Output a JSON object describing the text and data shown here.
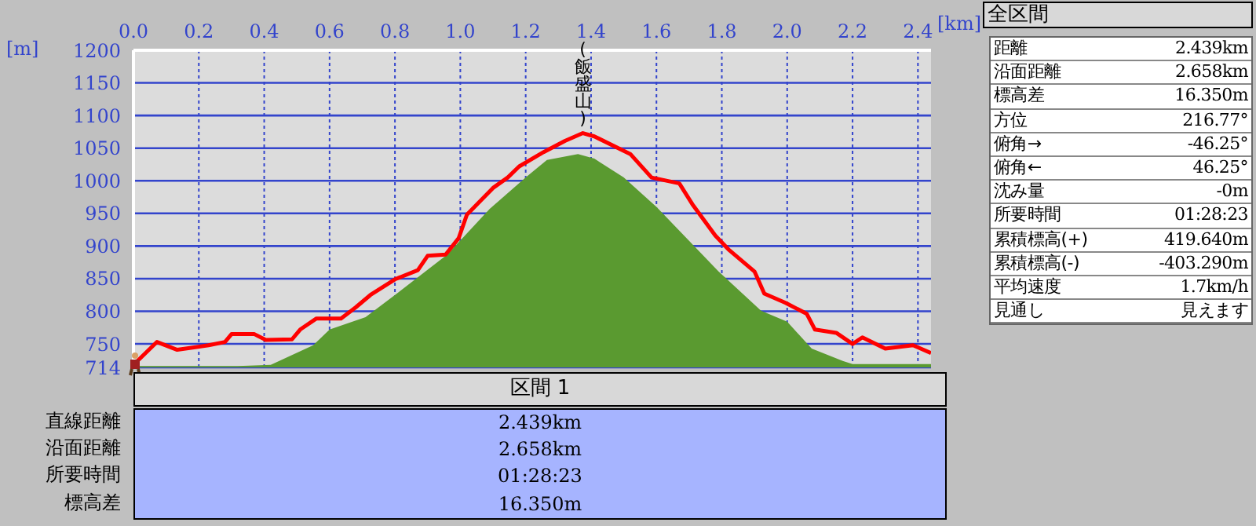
{
  "chart_data": {
    "type": "area",
    "xlabel": "[km]",
    "ylabel": "[m]",
    "xlim": [
      0,
      2.44
    ],
    "xticks": [
      {
        "value": 0,
        "label": "0.0"
      },
      0.2,
      0.4,
      0.6,
      0.8,
      {
        "value": 1,
        "label": "1.0"
      },
      1.2,
      1.4,
      1.6,
      1.8,
      {
        "value": 2,
        "label": "2.0"
      },
      2.2,
      2.4
    ],
    "ylim": [
      714,
      1200
    ],
    "yticks": [
      714,
      750,
      800,
      850,
      900,
      950,
      1000,
      1050,
      1100,
      1150,
      1200
    ],
    "grid": true,
    "marker": "none",
    "line_style": "solid",
    "series": [
      {
        "color": "#5a9a30",
        "x": [
          0,
          0.32,
          0.42,
          0.55,
          0.6,
          0.71,
          0.8,
          0.96,
          1.09,
          1.2,
          1.265,
          1.36,
          1.41,
          1.5,
          1.6,
          1.79,
          1.92,
          2.0,
          2.075,
          2.17,
          2.2,
          2.44
        ],
        "values": [
          716,
          716,
          718,
          748,
          772,
          791,
          825,
          887,
          957,
          1005,
          1032,
          1041,
          1034,
          1005,
          960,
          861,
          801,
          784,
          743,
          724,
          719,
          719
        ]
      },
      {
        "type": "line",
        "color": "#ff0000",
        "x": [
          0,
          0.072,
          0.134,
          0.23,
          0.28,
          0.3,
          0.37,
          0.405,
          0.485,
          0.51,
          0.56,
          0.635,
          0.68,
          0.725,
          0.8,
          0.87,
          0.9,
          0.955,
          0.995,
          1.02,
          1.1,
          1.145,
          1.18,
          1.255,
          1.32,
          1.375,
          1.41,
          1.52,
          1.585,
          1.67,
          1.71,
          1.78,
          1.82,
          1.9,
          1.93,
          1.995,
          2.06,
          2.085,
          2.15,
          2.2,
          2.23,
          2.3,
          2.385,
          2.44
        ],
        "values": [
          718,
          753,
          741,
          748,
          753,
          765,
          765,
          756,
          757,
          772,
          789,
          789,
          806,
          825,
          849,
          863,
          885,
          887,
          912,
          948,
          989,
          1005,
          1022,
          1044,
          1061,
          1073,
          1068,
          1041,
          1005,
          996,
          964,
          916,
          895,
          861,
          827,
          813,
          796,
          772,
          767,
          750,
          760,
          743,
          748,
          736
        ]
      }
    ],
    "annotations": [
      {
        "text": "(飯盛山)",
        "x": 1.375,
        "y": 1073
      },
      "全区間",
      "距離",
      "2.439km",
      "沿面距離",
      "2.658km",
      "標高差",
      "16.350m",
      "方位",
      "216.77°",
      "俯角→",
      "-46.25°",
      "俯角←",
      "46.25°",
      "沈み量",
      "-0m",
      "所要時間",
      "01:28:23",
      "累積標高(+)",
      "419.640m",
      "累積標高(-)",
      "-403.290m",
      "平均速度",
      "1.7km/h",
      "見通し",
      "見えます",
      "区間 1",
      "直線距離",
      "2.439km",
      "沿面距離",
      "2.658km",
      "所要時間",
      "01:28:23",
      "標高差",
      "16.350m"
    ]
  }
}
